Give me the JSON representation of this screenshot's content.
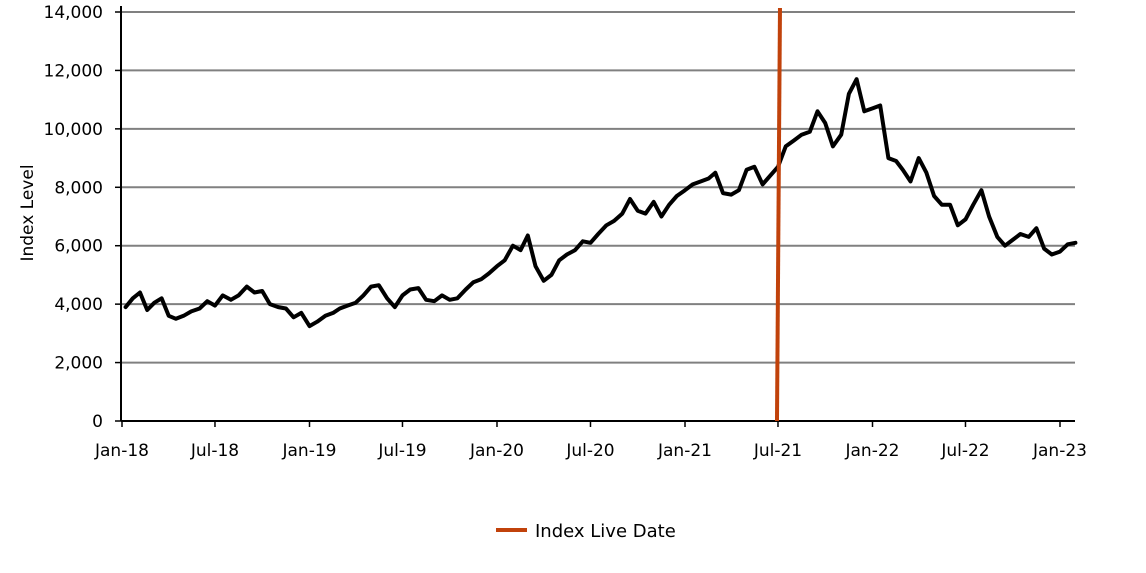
{
  "chart_data": {
    "type": "line",
    "title": "",
    "xlabel": "",
    "ylabel": "Index Level",
    "ylim": [
      0,
      14000
    ],
    "y_ticks": [
      0,
      2000,
      4000,
      6000,
      8000,
      10000,
      12000,
      14000
    ],
    "y_tick_labels": [
      "0",
      "2,000",
      "4,000",
      "6,000",
      "8,000",
      "10,000",
      "12,000",
      "14,000"
    ],
    "xlim": [
      "2018-01-01",
      "2023-03-01"
    ],
    "x_ticks": [
      "2018-01-01",
      "2018-07-01",
      "2019-01-01",
      "2019-07-01",
      "2020-01-01",
      "2020-07-01",
      "2021-01-01",
      "2021-07-01",
      "2022-01-01",
      "2022-07-01",
      "2023-01-01"
    ],
    "x_tick_labels": [
      "Jan-18",
      "Jul-18",
      "Jan-19",
      "Jul-19",
      "Jan-20",
      "Jul-20",
      "Jan-21",
      "Jul-21",
      "Jan-22",
      "Jul-22",
      "Jan-23"
    ],
    "grid": "horizontal",
    "legend_position": "bottom-center",
    "series": [
      {
        "color": "#000000",
        "points": [
          [
            "2018-01-08",
            3900
          ],
          [
            "2018-01-22",
            4200
          ],
          [
            "2018-02-05",
            4400
          ],
          [
            "2018-02-19",
            3800
          ],
          [
            "2018-03-05",
            4050
          ],
          [
            "2018-03-19",
            4200
          ],
          [
            "2018-04-02",
            3600
          ],
          [
            "2018-04-16",
            3500
          ],
          [
            "2018-05-01",
            3600
          ],
          [
            "2018-05-16",
            3750
          ],
          [
            "2018-06-01",
            3850
          ],
          [
            "2018-06-16",
            4100
          ],
          [
            "2018-07-01",
            3950
          ],
          [
            "2018-07-16",
            4300
          ],
          [
            "2018-08-01",
            4150
          ],
          [
            "2018-08-16",
            4300
          ],
          [
            "2018-09-01",
            4600
          ],
          [
            "2018-09-16",
            4400
          ],
          [
            "2018-10-01",
            4450
          ],
          [
            "2018-10-16",
            4000
          ],
          [
            "2018-11-01",
            3900
          ],
          [
            "2018-11-16",
            3850
          ],
          [
            "2018-12-01",
            3550
          ],
          [
            "2018-12-16",
            3700
          ],
          [
            "2019-01-01",
            3250
          ],
          [
            "2019-01-16",
            3400
          ],
          [
            "2019-02-01",
            3600
          ],
          [
            "2019-02-16",
            3700
          ],
          [
            "2019-03-01",
            3850
          ],
          [
            "2019-03-16",
            3950
          ],
          [
            "2019-04-01",
            4050
          ],
          [
            "2019-04-16",
            4300
          ],
          [
            "2019-05-01",
            4600
          ],
          [
            "2019-05-16",
            4650
          ],
          [
            "2019-06-01",
            4200
          ],
          [
            "2019-06-16",
            3900
          ],
          [
            "2019-07-01",
            4300
          ],
          [
            "2019-07-16",
            4500
          ],
          [
            "2019-08-01",
            4550
          ],
          [
            "2019-08-16",
            4150
          ],
          [
            "2019-09-01",
            4100
          ],
          [
            "2019-09-16",
            4300
          ],
          [
            "2019-10-01",
            4150
          ],
          [
            "2019-10-16",
            4200
          ],
          [
            "2019-11-01",
            4500
          ],
          [
            "2019-11-16",
            4750
          ],
          [
            "2019-12-01",
            4850
          ],
          [
            "2019-12-16",
            5050
          ],
          [
            "2020-01-01",
            5300
          ],
          [
            "2020-01-16",
            5500
          ],
          [
            "2020-02-01",
            6000
          ],
          [
            "2020-02-16",
            5850
          ],
          [
            "2020-03-01",
            6350
          ],
          [
            "2020-03-16",
            5300
          ],
          [
            "2020-04-01",
            4800
          ],
          [
            "2020-04-16",
            5000
          ],
          [
            "2020-05-01",
            5500
          ],
          [
            "2020-05-16",
            5700
          ],
          [
            "2020-06-01",
            5850
          ],
          [
            "2020-06-16",
            6150
          ],
          [
            "2020-07-01",
            6100
          ],
          [
            "2020-07-16",
            6400
          ],
          [
            "2020-08-01",
            6700
          ],
          [
            "2020-08-16",
            6850
          ],
          [
            "2020-09-01",
            7100
          ],
          [
            "2020-09-16",
            7600
          ],
          [
            "2020-10-01",
            7200
          ],
          [
            "2020-10-16",
            7100
          ],
          [
            "2020-11-01",
            7500
          ],
          [
            "2020-11-16",
            7000
          ],
          [
            "2020-12-01",
            7400
          ],
          [
            "2020-12-16",
            7700
          ],
          [
            "2021-01-01",
            7900
          ],
          [
            "2021-01-16",
            8100
          ],
          [
            "2021-02-01",
            8200
          ],
          [
            "2021-02-16",
            8300
          ],
          [
            "2021-03-01",
            8500
          ],
          [
            "2021-03-16",
            7800
          ],
          [
            "2021-04-01",
            7750
          ],
          [
            "2021-04-16",
            7900
          ],
          [
            "2021-05-01",
            8600
          ],
          [
            "2021-05-16",
            8700
          ],
          [
            "2021-06-01",
            8100
          ],
          [
            "2021-06-16",
            8400
          ],
          [
            "2021-07-01",
            8700
          ],
          [
            "2021-07-16",
            9400
          ],
          [
            "2021-08-01",
            9600
          ],
          [
            "2021-08-16",
            9800
          ],
          [
            "2021-09-01",
            9900
          ],
          [
            "2021-09-16",
            10600
          ],
          [
            "2021-10-01",
            10200
          ],
          [
            "2021-10-16",
            9400
          ],
          [
            "2021-11-01",
            9800
          ],
          [
            "2021-11-16",
            11200
          ],
          [
            "2021-12-01",
            11700
          ],
          [
            "2021-12-16",
            10600
          ],
          [
            "2022-01-01",
            10700
          ],
          [
            "2022-01-16",
            10800
          ],
          [
            "2022-02-01",
            9000
          ],
          [
            "2022-02-16",
            8900
          ],
          [
            "2022-03-01",
            8600
          ],
          [
            "2022-03-16",
            8200
          ],
          [
            "2022-04-01",
            9000
          ],
          [
            "2022-04-16",
            8500
          ],
          [
            "2022-05-01",
            7700
          ],
          [
            "2022-05-16",
            7400
          ],
          [
            "2022-06-01",
            7400
          ],
          [
            "2022-06-16",
            6700
          ],
          [
            "2022-07-01",
            6900
          ],
          [
            "2022-07-16",
            7400
          ],
          [
            "2022-08-01",
            7900
          ],
          [
            "2022-08-16",
            7000
          ],
          [
            "2022-09-01",
            6300
          ],
          [
            "2022-09-16",
            6000
          ],
          [
            "2022-10-01",
            6200
          ],
          [
            "2022-10-16",
            6400
          ],
          [
            "2022-11-01",
            6300
          ],
          [
            "2022-11-16",
            6600
          ],
          [
            "2022-12-01",
            5900
          ],
          [
            "2022-12-16",
            5700
          ],
          [
            "2023-01-01",
            5800
          ],
          [
            "2023-01-16",
            6050
          ],
          [
            "2023-01-31",
            6100
          ]
        ]
      }
    ],
    "live_date": {
      "label": "Index Live Date",
      "date": "2021-07-01",
      "color": "#c1420b"
    }
  }
}
